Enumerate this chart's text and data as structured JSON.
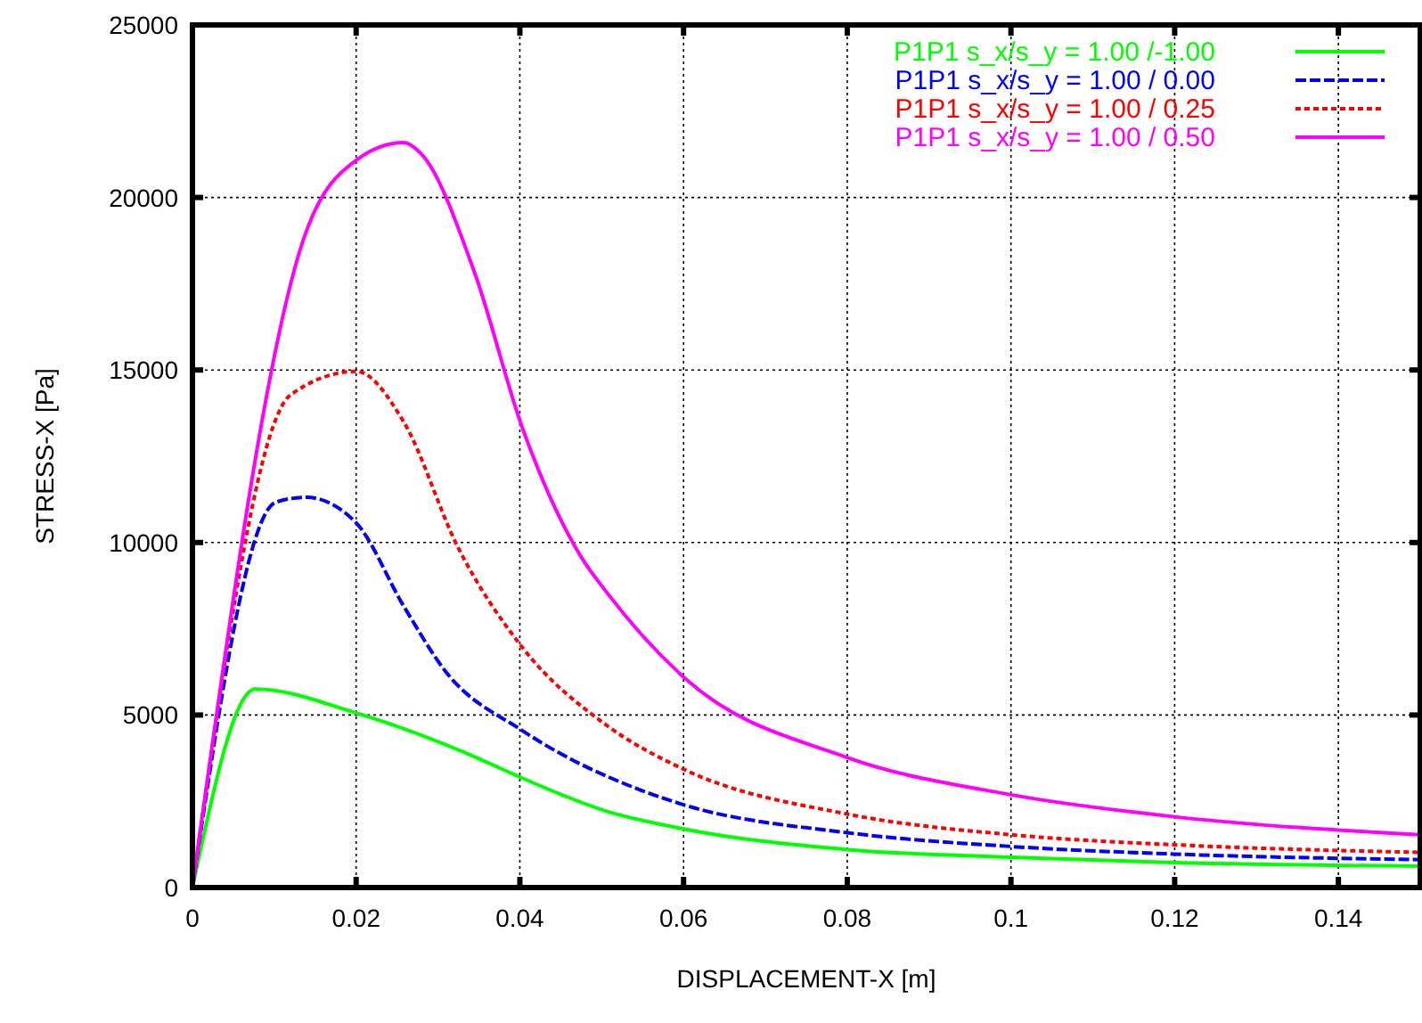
{
  "chart_data": {
    "type": "line",
    "xlabel": "DISPLACEMENT-X [m]",
    "ylabel": "STRESS-X [Pa]",
    "xlim": [
      0,
      0.15
    ],
    "ylim": [
      0,
      25000
    ],
    "xticks": [
      0,
      0.02,
      0.04,
      0.06,
      0.08,
      0.1,
      0.12,
      0.14
    ],
    "yticks": [
      0,
      5000,
      10000,
      15000,
      20000,
      25000
    ],
    "grid": true,
    "legend": "top right",
    "series": [
      {
        "name": "P1P1 s_x/s_y = 1.00 /-1.00",
        "color": "#00ff00",
        "line_style": "solid",
        "x": [
          0,
          0.0077,
          0.02,
          0.0338,
          0.0403,
          0.0505,
          0.06,
          0.08,
          0.1,
          0.12,
          0.15
        ],
        "values": [
          0,
          5750,
          5060,
          3860,
          3170,
          2220,
          1700,
          1100,
          880,
          720,
          620
        ]
      },
      {
        "name": "P1P1 s_x/s_y = 1.00 / 0.00",
        "color": "#0000ff",
        "line_style": "dashed",
        "x": [
          0,
          0.0102,
          0.0139,
          0.02,
          0.0258,
          0.0309,
          0.0403,
          0.0548,
          0.06,
          0.08,
          0.1,
          0.12,
          0.15
        ],
        "values": [
          0,
          11170,
          11310,
          10570,
          8160,
          6270,
          4550,
          2820,
          2400,
          1590,
          1190,
          970,
          810
        ]
      },
      {
        "name": "P1P1 s_x/s_y = 1.00 / 0.25",
        "color": "#ff0000",
        "line_style": "dotted",
        "x": [
          0,
          0.012,
          0.02,
          0.0258,
          0.0324,
          0.0403,
          0.0505,
          0.06,
          0.08,
          0.1,
          0.12,
          0.15
        ],
        "values": [
          0,
          14280,
          14960,
          13500,
          9880,
          6960,
          4720,
          3430,
          2130,
          1530,
          1240,
          1020
        ]
      },
      {
        "name": "P1P1 s_x/s_y = 1.00 / 0.50",
        "color": "#ff00ff",
        "line_style": "solid",
        "x": [
          0,
          0.0139,
          0.02,
          0.0258,
          0.028,
          0.0345,
          0.0403,
          0.0476,
          0.0505,
          0.06,
          0.08,
          0.1,
          0.12,
          0.15
        ],
        "values": [
          0,
          19010,
          21080,
          21590,
          21250,
          17800,
          13330,
          9540,
          8590,
          6100,
          3770,
          2690,
          2050,
          1530
        ]
      }
    ]
  }
}
